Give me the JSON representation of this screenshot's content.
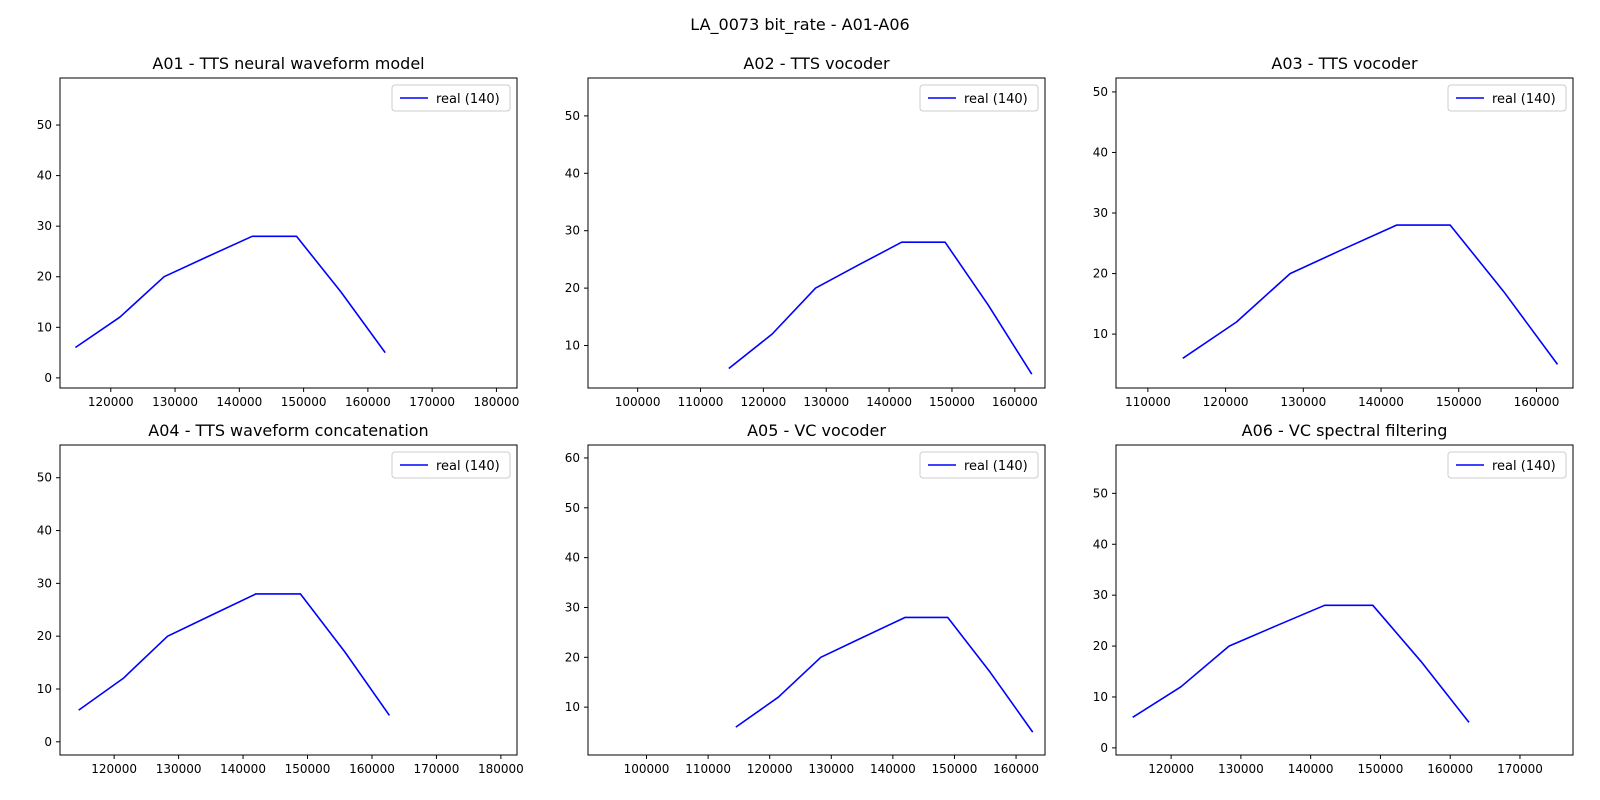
{
  "figure": {
    "suptitle": "LA_0073 bit_rate - A01-A06"
  },
  "colors": {
    "line": "#0000ff",
    "axes": "#000000",
    "background": "#ffffff",
    "legend_border": "#cccccc"
  },
  "chart_data": [
    {
      "type": "line",
      "title": "A01 - TTS neural waveform model",
      "xlabel": "",
      "ylabel": "",
      "xlim": [
        112100,
        183200
      ],
      "ylim": [
        -2,
        59.3
      ],
      "xticks": [
        120000,
        130000,
        140000,
        150000,
        160000,
        170000,
        180000
      ],
      "yticks": [
        0,
        10,
        20,
        30,
        40,
        50
      ],
      "grid": false,
      "legend_position": "top-right",
      "series": [
        {
          "name": "real (140)",
          "color": "#0000ff",
          "x": [
            114500,
            121400,
            128300,
            135100,
            142000,
            148900,
            155800,
            162700
          ],
          "y": [
            6,
            12,
            20,
            24,
            28,
            28,
            17,
            5
          ]
        }
      ]
    },
    {
      "type": "line",
      "title": "A02 - TTS vocoder",
      "xlabel": "",
      "ylabel": "",
      "xlim": [
        92100,
        164800
      ],
      "ylim": [
        2.6,
        56.6
      ],
      "xticks": [
        100000,
        110000,
        120000,
        130000,
        140000,
        150000,
        160000
      ],
      "yticks": [
        10,
        20,
        30,
        40,
        50
      ],
      "grid": false,
      "legend_position": "top-right",
      "series": [
        {
          "name": "real (140)",
          "color": "#0000ff",
          "x": [
            114500,
            121400,
            128300,
            135100,
            142000,
            148900,
            155800,
            162700
          ],
          "y": [
            6,
            12,
            20,
            24,
            28,
            28,
            17,
            5
          ]
        }
      ]
    },
    {
      "type": "line",
      "title": "A03 - TTS vocoder",
      "xlabel": "",
      "ylabel": "",
      "xlim": [
        105900,
        164700
      ],
      "ylim": [
        1.1,
        52.3
      ],
      "xticks": [
        110000,
        120000,
        130000,
        140000,
        150000,
        160000
      ],
      "yticks": [
        10,
        20,
        30,
        40,
        50
      ],
      "grid": false,
      "legend_position": "top-right",
      "series": [
        {
          "name": "real (140)",
          "color": "#0000ff",
          "x": [
            114500,
            121400,
            128300,
            135100,
            142000,
            148900,
            155800,
            162700
          ],
          "y": [
            6,
            12,
            20,
            24,
            28,
            28,
            17,
            5
          ]
        }
      ]
    },
    {
      "type": "line",
      "title": "A04 - TTS waveform concatenation",
      "xlabel": "",
      "ylabel": "",
      "xlim": [
        111600,
        182500
      ],
      "ylim": [
        -2.5,
        56.2
      ],
      "xticks": [
        120000,
        130000,
        140000,
        150000,
        160000,
        170000,
        180000
      ],
      "yticks": [
        0,
        10,
        20,
        30,
        40,
        50
      ],
      "grid": false,
      "legend_position": "top-right",
      "series": [
        {
          "name": "real (140)",
          "color": "#0000ff",
          "x": [
            114500,
            121400,
            128300,
            135100,
            142000,
            148900,
            155800,
            162700
          ],
          "y": [
            6,
            12,
            20,
            24,
            28,
            28,
            17,
            5
          ]
        }
      ]
    },
    {
      "type": "line",
      "title": "A05 - VC vocoder",
      "xlabel": "",
      "ylabel": "",
      "xlim": [
        90500,
        164700
      ],
      "ylim": [
        0.4,
        62.6
      ],
      "xticks": [
        100000,
        110000,
        120000,
        130000,
        140000,
        150000,
        160000
      ],
      "yticks": [
        10,
        20,
        30,
        40,
        50,
        60
      ],
      "grid": false,
      "legend_position": "top-right",
      "series": [
        {
          "name": "real (140)",
          "color": "#0000ff",
          "x": [
            114500,
            121400,
            128300,
            135100,
            142000,
            148900,
            155800,
            162700
          ],
          "y": [
            6,
            12,
            20,
            24,
            28,
            28,
            17,
            5
          ]
        }
      ]
    },
    {
      "type": "line",
      "title": "A06 - VC spectral filtering",
      "xlabel": "",
      "ylabel": "",
      "xlim": [
        112100,
        177600
      ],
      "ylim": [
        -1.4,
        59.5
      ],
      "xticks": [
        120000,
        130000,
        140000,
        150000,
        160000,
        170000
      ],
      "yticks": [
        0,
        10,
        20,
        30,
        40,
        50
      ],
      "grid": false,
      "legend_position": "top-right",
      "series": [
        {
          "name": "real (140)",
          "color": "#0000ff",
          "x": [
            114500,
            121400,
            128300,
            135100,
            142000,
            148900,
            155800,
            162700
          ],
          "y": [
            6,
            12,
            20,
            24,
            28,
            28,
            17,
            5
          ]
        }
      ]
    }
  ]
}
